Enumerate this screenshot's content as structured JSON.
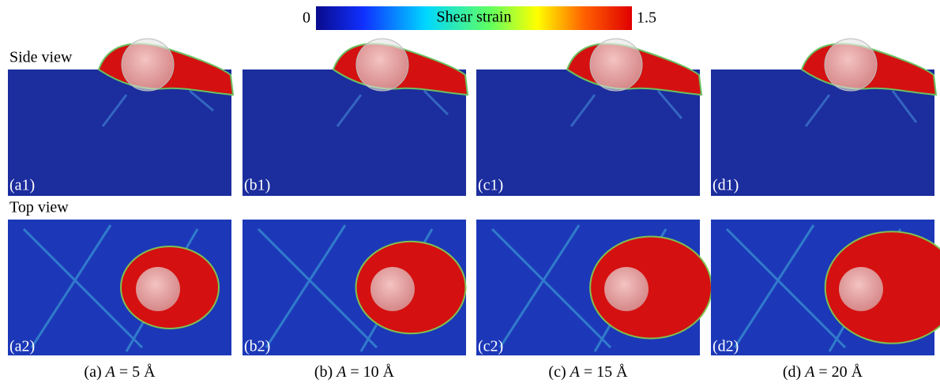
{
  "colorbar": {
    "min": 0,
    "label": "Shear strain",
    "max": 1.5
  },
  "row_labels": [
    "Side view",
    "Top view"
  ],
  "panels": [
    {
      "side_label": "(a1)",
      "top_label": "(a2)",
      "caption": {
        "prefix": "(a) ",
        "variable": "A",
        "suffix": " = 5 Å"
      }
    },
    {
      "side_label": "(b1)",
      "top_label": "(b2)",
      "caption": {
        "prefix": "(b) ",
        "variable": "A",
        "suffix": " = 10 Å"
      }
    },
    {
      "side_label": "(c1)",
      "top_label": "(c2)",
      "caption": {
        "prefix": "(c) ",
        "variable": "A",
        "suffix": " = 15 Å"
      }
    },
    {
      "side_label": "(d1)",
      "top_label": "(d2)",
      "caption": {
        "prefix": "(d) ",
        "variable": "A",
        "suffix": " = 20 Å"
      }
    }
  ]
}
